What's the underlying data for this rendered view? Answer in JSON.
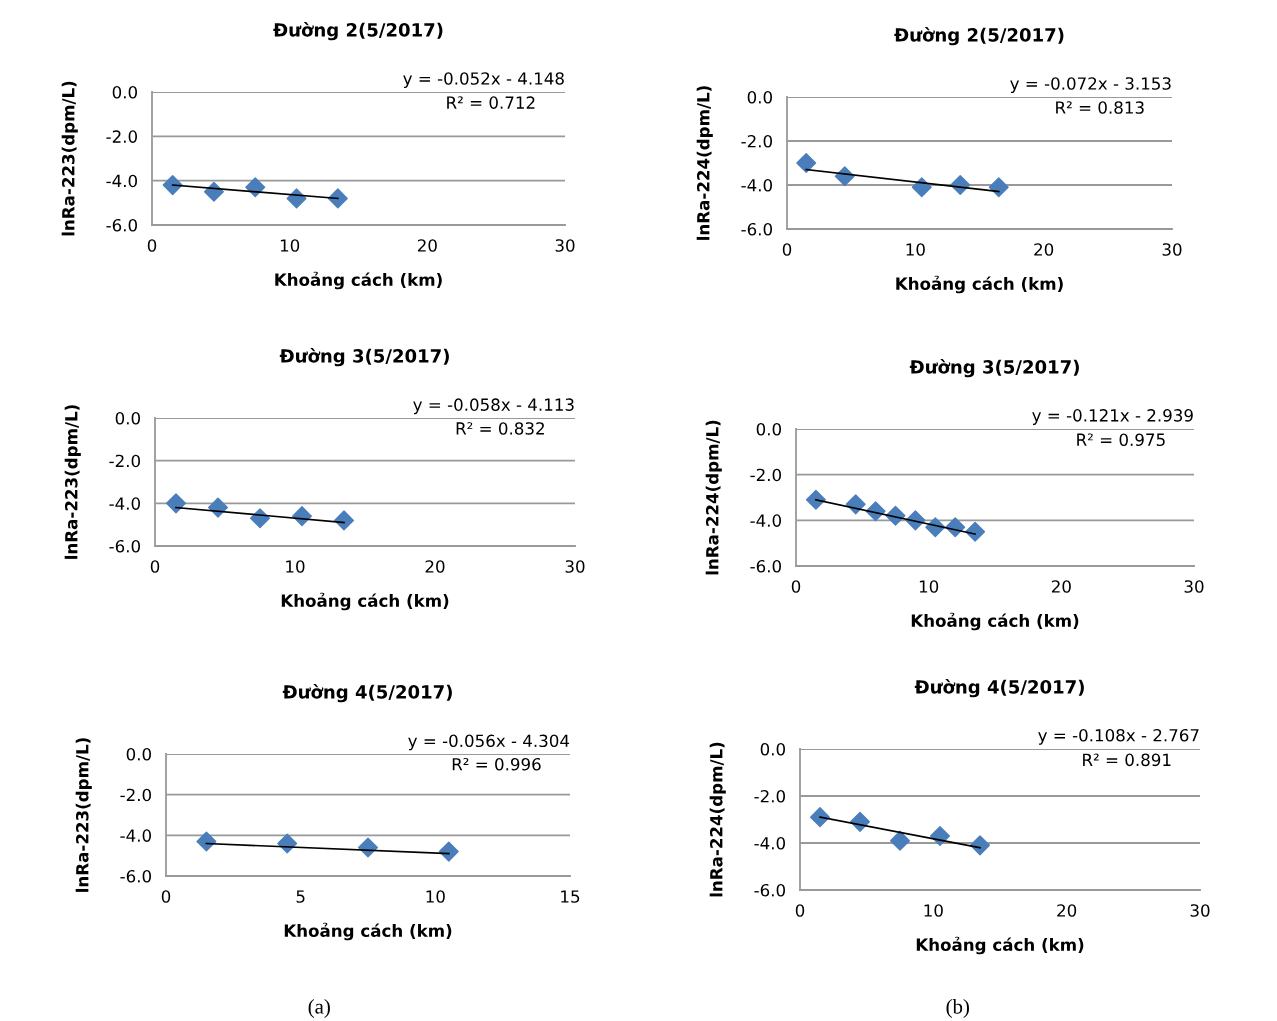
{
  "chart_data": [
    {
      "type": "scatter",
      "title": "Đường 2(5/2017)",
      "xlabel": "Khoảng cách (km)",
      "ylabel": "lnRa-223(dpm/L)",
      "grid": "y",
      "legend": false,
      "xlim": [
        0,
        30
      ],
      "xticks": [
        0,
        10,
        20,
        30
      ],
      "ylim": [
        -6,
        0
      ],
      "yticks": [
        {
          "value": 0,
          "label": "0.0"
        },
        {
          "value": -2,
          "label": "-2.0"
        },
        {
          "value": -4,
          "label": "-4.0"
        },
        {
          "value": -6,
          "label": "-6.0"
        }
      ],
      "annotations": [
        "y = -0.052x - 4.148",
        "R² = 0.712"
      ],
      "series": [
        {
          "marker": "diamond",
          "color": "#4a7ebb",
          "x": [
            1.5,
            4.5,
            7.5,
            10.5,
            13.5
          ],
          "values": [
            -4.2,
            -4.5,
            -4.3,
            -4.8,
            -4.8
          ]
        },
        {
          "type": "line",
          "color": "#000000",
          "x": [
            1.5,
            13.5
          ],
          "values": [
            -4.2,
            -4.8
          ]
        }
      ]
    },
    {
      "type": "scatter",
      "title": "Đường 2(5/2017)",
      "xlabel": "Khoảng cách (km)",
      "ylabel": "lnRa-224(dpm/L)",
      "grid": "y",
      "legend": false,
      "xlim": [
        0,
        30
      ],
      "xticks": [
        0,
        10,
        20,
        30
      ],
      "ylim": [
        -6,
        0
      ],
      "yticks": [
        {
          "value": 0,
          "label": "0.0"
        },
        {
          "value": -2,
          "label": "-2.0"
        },
        {
          "value": -4,
          "label": "-4.0"
        },
        {
          "value": -6,
          "label": "-6.0"
        }
      ],
      "annotations": [
        "y = -0.072x - 3.153",
        "R² = 0.813"
      ],
      "series": [
        {
          "marker": "diamond",
          "color": "#4a7ebb",
          "x": [
            1.5,
            4.5,
            10.5,
            13.5,
            16.5
          ],
          "values": [
            -3.0,
            -3.6,
            -4.1,
            -4.0,
            -4.1
          ]
        },
        {
          "type": "line",
          "color": "#000000",
          "x": [
            1.5,
            16.5
          ],
          "values": [
            -3.3,
            -4.3
          ]
        }
      ]
    },
    {
      "type": "scatter",
      "title": "Đường 3(5/2017)",
      "xlabel": "Khoảng cách (km)",
      "ylabel": "lnRa-223(dpm/L)",
      "grid": "y",
      "legend": false,
      "xlim": [
        0,
        30
      ],
      "xticks": [
        0,
        10,
        20,
        30
      ],
      "ylim": [
        -6,
        0
      ],
      "yticks": [
        {
          "value": 0,
          "label": "0.0"
        },
        {
          "value": -2,
          "label": "-2.0"
        },
        {
          "value": -4,
          "label": "-4.0"
        },
        {
          "value": -6,
          "label": "-6.0"
        }
      ],
      "annotations": [
        "y = -0.058x - 4.113",
        "R² = 0.832"
      ],
      "series": [
        {
          "marker": "diamond",
          "color": "#4a7ebb",
          "x": [
            1.5,
            4.5,
            7.5,
            10.5,
            13.5
          ],
          "values": [
            -4.0,
            -4.2,
            -4.7,
            -4.6,
            -4.8
          ]
        },
        {
          "type": "line",
          "color": "#000000",
          "x": [
            1.5,
            13.5
          ],
          "values": [
            -4.2,
            -4.9
          ]
        }
      ]
    },
    {
      "type": "scatter",
      "title": "Đường 3(5/2017)",
      "xlabel": "Khoảng cách (km)",
      "ylabel": "lnRa-224(dpm/L)",
      "grid": "y",
      "legend": false,
      "xlim": [
        0,
        30
      ],
      "xticks": [
        0,
        10,
        20,
        30
      ],
      "ylim": [
        -6,
        0
      ],
      "yticks": [
        {
          "value": 0,
          "label": "0.0"
        },
        {
          "value": -2,
          "label": "-2.0"
        },
        {
          "value": -4,
          "label": "-4.0"
        },
        {
          "value": -6,
          "label": "-6.0"
        }
      ],
      "annotations": [
        "y = -0.121x - 2.939",
        "R² = 0.975"
      ],
      "series": [
        {
          "marker": "diamond",
          "color": "#4a7ebb",
          "x": [
            1.5,
            4.5,
            6,
            7.5,
            9,
            10.5,
            12,
            13.5
          ],
          "values": [
            -3.1,
            -3.3,
            -3.6,
            -3.8,
            -4.0,
            -4.3,
            -4.3,
            -4.5
          ]
        },
        {
          "type": "line",
          "color": "#000000",
          "x": [
            1.5,
            13.5
          ],
          "values": [
            -3.1,
            -4.6
          ]
        }
      ]
    },
    {
      "type": "scatter",
      "title": "Đường 4(5/2017)",
      "xlabel": "Khoảng cách (km)",
      "ylabel": "lnRa-223(dpm/L)",
      "grid": "y",
      "legend": false,
      "xlim": [
        0,
        15
      ],
      "xticks": [
        0,
        5,
        10,
        15
      ],
      "ylim": [
        -6,
        0
      ],
      "yticks": [
        {
          "value": 0,
          "label": "0.0"
        },
        {
          "value": -2,
          "label": "-2.0"
        },
        {
          "value": -4,
          "label": "-4.0"
        },
        {
          "value": -6,
          "label": "-6.0"
        }
      ],
      "annotations": [
        "y = -0.056x - 4.304",
        "R² = 0.996",
        "(a)"
      ],
      "series": [
        {
          "marker": "diamond",
          "color": "#4a7ebb",
          "x": [
            1.5,
            4.5,
            7.5,
            10.5
          ],
          "values": [
            -4.3,
            -4.4,
            -4.6,
            -4.8
          ]
        },
        {
          "type": "line",
          "color": "#000000",
          "x": [
            1.5,
            10.5
          ],
          "values": [
            -4.4,
            -4.9
          ]
        }
      ]
    },
    {
      "type": "scatter",
      "title": "Đường 4(5/2017)",
      "xlabel": "Khoảng cách (km)",
      "ylabel": "lnRa-224(dpm/L)",
      "grid": "y",
      "legend": false,
      "xlim": [
        0,
        30
      ],
      "xticks": [
        0,
        10,
        20,
        30
      ],
      "ylim": [
        -6,
        0
      ],
      "yticks": [
        {
          "value": 0,
          "label": "0.0"
        },
        {
          "value": -2,
          "label": "-2.0"
        },
        {
          "value": -4,
          "label": "-4.0"
        },
        {
          "value": -6,
          "label": "-6.0"
        }
      ],
      "annotations": [
        "y = -0.108x - 2.767",
        "R² = 0.891",
        "(b)"
      ],
      "series": [
        {
          "marker": "diamond",
          "color": "#4a7ebb",
          "x": [
            1.5,
            4.5,
            7.5,
            10.5,
            13.5
          ],
          "values": [
            -2.9,
            -3.1,
            -3.9,
            -3.7,
            -4.1
          ]
        },
        {
          "type": "line",
          "color": "#000000",
          "x": [
            1.5,
            13.5
          ],
          "values": [
            -2.9,
            -4.2
          ]
        }
      ]
    }
  ]
}
